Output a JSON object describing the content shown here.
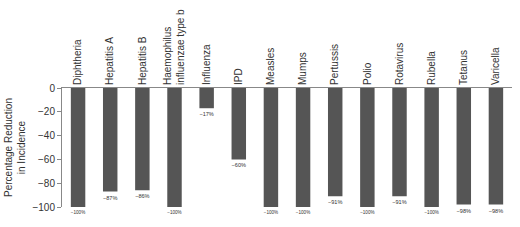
{
  "chart_data": {
    "type": "bar",
    "ylabel": "Percentage Reduction\nin Incidence",
    "categories": [
      "Diphtheria",
      "Hepatitis A",
      "Hepatitis B",
      "Haemophilus\ninfluenzae type b",
      "Influenza",
      "IPD",
      "Measles",
      "Mumps",
      "Pertussis",
      "Polio",
      "Rotavirus",
      "Rubella",
      "Tetanus",
      "Varicella"
    ],
    "values": [
      -100,
      -87,
      -86,
      -100,
      -17,
      -60,
      -100,
      -100,
      -91,
      -100,
      -91,
      -100,
      -98,
      -98
    ],
    "value_labels": [
      "−100%",
      "−87%",
      "−86%",
      "−100%",
      "−17%",
      "−60%",
      "−100%",
      "−100%",
      "−91%",
      "−100%",
      "−91%",
      "−100%",
      "−98%",
      "−98%"
    ],
    "color": "#555555",
    "ylim": [
      -100,
      0
    ],
    "yticks": [
      0,
      {
        "value": -20,
        "label": "−20"
      },
      {
        "value": -40,
        "label": "−40"
      },
      {
        "value": -60,
        "label": "−60"
      },
      {
        "value": -80,
        "label": "−80"
      },
      {
        "value": -100,
        "label": "−100"
      }
    ],
    "grid": false,
    "data_labels": true
  }
}
